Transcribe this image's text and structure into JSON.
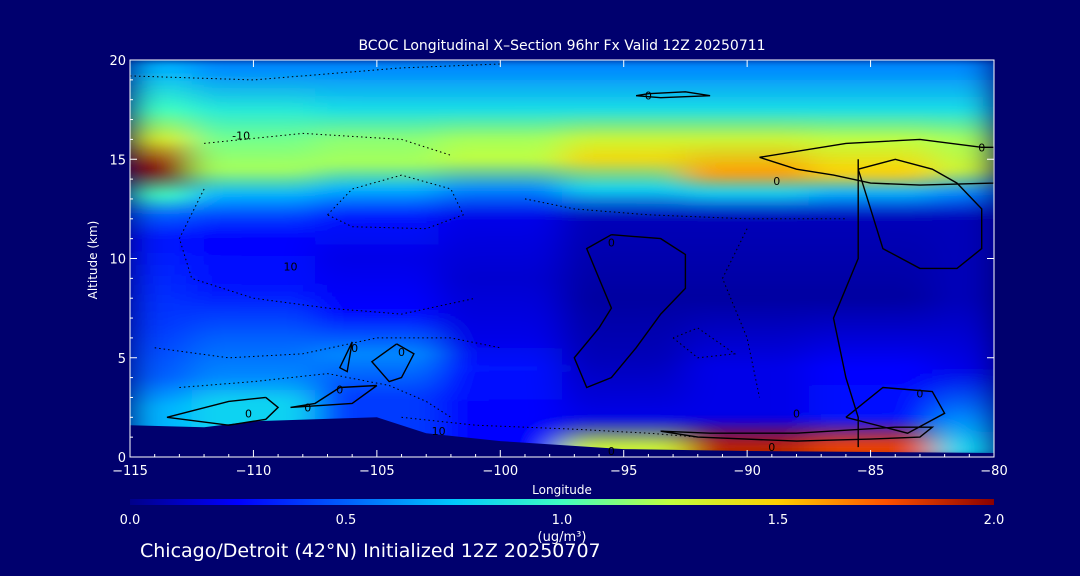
{
  "chart_data": {
    "type": "heatmap",
    "title": "BCOC Longitudinal X–Section 96hr  Fx Valid 12Z 20250711",
    "xlabel": "Longitude",
    "ylabel": "Altitude (km)",
    "xlim": [
      -115,
      -80
    ],
    "ylim": [
      0,
      20
    ],
    "x_ticks": [
      -115,
      -110,
      -105,
      -100,
      -95,
      -90,
      -85,
      -80
    ],
    "y_ticks": [
      0,
      5,
      10,
      15,
      20
    ],
    "colorbar": {
      "min": 0.0,
      "max": 2.0,
      "ticks": [
        0.0,
        0.5,
        1.0,
        1.5,
        2.0
      ],
      "tick_labels": [
        "0.0",
        "0.5",
        "1.0",
        "1.5",
        "2.0"
      ],
      "unit_label": "(ug/m³)"
    },
    "field_profiles": [
      {
        "lon": -115,
        "bands": [
          [
            19.5,
            0.7
          ],
          [
            17.5,
            1.0
          ],
          [
            16.0,
            1.35
          ],
          [
            14.5,
            2.0
          ],
          [
            13.2,
            1.0
          ],
          [
            12.2,
            0.5
          ],
          [
            11.0,
            0.3
          ],
          [
            9.0,
            0.35
          ],
          [
            6.5,
            0.4
          ],
          [
            4.0,
            0.5
          ],
          [
            2.5,
            0.7
          ]
        ]
      },
      {
        "lon": -110,
        "bands": [
          [
            19.5,
            0.6
          ],
          [
            17.5,
            0.9
          ],
          [
            16.0,
            1.1
          ],
          [
            14.5,
            1.2
          ],
          [
            13.2,
            0.7
          ],
          [
            12.0,
            0.4
          ],
          [
            11.0,
            0.25
          ],
          [
            8.5,
            0.3
          ],
          [
            6.0,
            0.5
          ],
          [
            4.0,
            0.6
          ],
          [
            2.8,
            0.8
          ]
        ]
      },
      {
        "lon": -105,
        "bands": [
          [
            19.5,
            0.6
          ],
          [
            17.5,
            0.85
          ],
          [
            16.0,
            1.15
          ],
          [
            14.8,
            1.2
          ],
          [
            13.5,
            0.7
          ],
          [
            12.0,
            0.3
          ],
          [
            10.0,
            0.2
          ],
          [
            7.5,
            0.25
          ],
          [
            5.2,
            0.6
          ],
          [
            4.0,
            0.5
          ],
          [
            3.0,
            0.4
          ]
        ]
      },
      {
        "lon": -100,
        "bands": [
          [
            19.5,
            0.6
          ],
          [
            17.5,
            0.85
          ],
          [
            16.0,
            1.2
          ],
          [
            15.0,
            1.25
          ],
          [
            13.5,
            0.6
          ],
          [
            12.0,
            0.2
          ],
          [
            9.0,
            0.15
          ],
          [
            6.0,
            0.2
          ],
          [
            4.5,
            0.3
          ],
          [
            2.0,
            0.25
          ]
        ]
      },
      {
        "lon": -95,
        "bands": [
          [
            19.5,
            0.6
          ],
          [
            17.5,
            0.85
          ],
          [
            16.0,
            1.3
          ],
          [
            15.0,
            1.45
          ],
          [
            13.5,
            0.8
          ],
          [
            12.0,
            0.1
          ],
          [
            8.0,
            0.05
          ],
          [
            5.0,
            0.1
          ],
          [
            2.0,
            0.2
          ],
          [
            0.5,
            1.3
          ]
        ]
      },
      {
        "lon": -90,
        "bands": [
          [
            19.5,
            0.6
          ],
          [
            17.5,
            0.85
          ],
          [
            16.0,
            1.3
          ],
          [
            14.3,
            1.6
          ],
          [
            13.3,
            0.8
          ],
          [
            12.0,
            0.1
          ],
          [
            8.0,
            0.05
          ],
          [
            4.5,
            0.2
          ],
          [
            2.0,
            0.2
          ],
          [
            0.6,
            1.9
          ]
        ]
      },
      {
        "lon": -85,
        "bands": [
          [
            19.5,
            0.6
          ],
          [
            17.5,
            0.85
          ],
          [
            16.0,
            1.25
          ],
          [
            14.3,
            1.5
          ],
          [
            13.3,
            0.7
          ],
          [
            12.0,
            0.1
          ],
          [
            8.0,
            0.05
          ],
          [
            4.5,
            0.25
          ],
          [
            2.0,
            0.3
          ],
          [
            0.6,
            1.8
          ]
        ]
      },
      {
        "lon": -80,
        "bands": [
          [
            19.5,
            0.6
          ],
          [
            17.5,
            0.85
          ],
          [
            16.0,
            1.2
          ],
          [
            14.5,
            1.3
          ],
          [
            13.3,
            0.6
          ],
          [
            12.0,
            0.1
          ],
          [
            8.0,
            0.1
          ],
          [
            4.5,
            0.2
          ],
          [
            2.0,
            0.6
          ],
          [
            0.6,
            0.8
          ]
        ]
      }
    ],
    "terrain": [
      [
        -115,
        1.6
      ],
      [
        -112,
        1.5
      ],
      [
        -110,
        1.8
      ],
      [
        -105,
        2.0
      ],
      [
        -103,
        1.2
      ],
      [
        -100,
        0.8
      ],
      [
        -95,
        0.4
      ],
      [
        -90,
        0.3
      ],
      [
        -80,
        0.2
      ]
    ],
    "contour_label": "0",
    "contour_label_neg": "-10",
    "contours_solid": [
      [
        [
          -89.5,
          15.1
        ],
        [
          -86,
          15.8
        ],
        [
          -83,
          16.0
        ],
        [
          -80.5,
          15.6
        ],
        [
          -80,
          15.6
        ],
        [
          -80,
          13.8
        ],
        [
          -83,
          13.7
        ],
        [
          -85,
          13.8
        ],
        [
          -86.5,
          14.2
        ],
        [
          -88,
          14.5
        ],
        [
          -89.5,
          15.1
        ]
      ],
      [
        [
          -95.5,
          11.2
        ],
        [
          -93.5,
          11.0
        ],
        [
          -92.5,
          10.2
        ],
        [
          -92.5,
          8.5
        ],
        [
          -93.5,
          7.2
        ],
        [
          -94.5,
          5.5
        ],
        [
          -95.5,
          4.0
        ],
        [
          -96.5,
          3.5
        ],
        [
          -97.0,
          5.0
        ],
        [
          -96.0,
          6.5
        ],
        [
          -95.5,
          7.5
        ],
        [
          -96.0,
          9.0
        ],
        [
          -96.5,
          10.5
        ],
        [
          -95.5,
          11.2
        ]
      ],
      [
        [
          -104.2,
          5.7
        ],
        [
          -103.5,
          5.2
        ],
        [
          -104.0,
          4.0
        ],
        [
          -104.5,
          3.8
        ],
        [
          -105.2,
          4.8
        ],
        [
          -104.2,
          5.7
        ]
      ],
      [
        [
          -106.0,
          5.8
        ],
        [
          -106.5,
          4.5
        ],
        [
          -106.2,
          4.3
        ],
        [
          -106.0,
          5.8
        ]
      ],
      [
        [
          -109.5,
          3.0
        ],
        [
          -111.0,
          2.8
        ],
        [
          -113.5,
          2.0
        ],
        [
          -111.0,
          1.6
        ],
        [
          -109.5,
          1.9
        ],
        [
          -109.0,
          2.5
        ],
        [
          -109.5,
          3.0
        ]
      ],
      [
        [
          -105.0,
          3.6
        ],
        [
          -106.5,
          3.5
        ],
        [
          -107.5,
          2.7
        ],
        [
          -108.5,
          2.5
        ],
        [
          -106.0,
          2.7
        ],
        [
          -105.0,
          3.6
        ]
      ],
      [
        [
          -85.5,
          14.5
        ],
        [
          -84.0,
          15.0
        ],
        [
          -82.5,
          14.5
        ],
        [
          -81.5,
          13.8
        ],
        [
          -80.5,
          12.5
        ],
        [
          -80.5,
          10.5
        ],
        [
          -81.5,
          9.5
        ],
        [
          -83.0,
          9.5
        ],
        [
          -84.5,
          10.5
        ],
        [
          -85.0,
          12.5
        ],
        [
          -85.5,
          14.5
        ]
      ],
      [
        [
          -85.5,
          15.0
        ],
        [
          -85.5,
          10.0
        ],
        [
          -86.5,
          7.0
        ],
        [
          -86.0,
          4.0
        ],
        [
          -85.5,
          2.0
        ],
        [
          -85.5,
          0.5
        ]
      ],
      [
        [
          -86.0,
          2.0
        ],
        [
          -84.5,
          3.5
        ],
        [
          -82.5,
          3.3
        ],
        [
          -82.0,
          2.2
        ],
        [
          -83.5,
          1.2
        ],
        [
          -86.0,
          2.0
        ]
      ],
      [
        [
          -93.5,
          1.3
        ],
        [
          -91.5,
          1.2
        ],
        [
          -88.0,
          1.2
        ],
        [
          -84.0,
          1.5
        ],
        [
          -82.5,
          1.5
        ],
        [
          -83.0,
          1.0
        ],
        [
          -85.0,
          0.9
        ],
        [
          -88.0,
          0.8
        ],
        [
          -92.0,
          1.0
        ],
        [
          -93.5,
          1.3
        ]
      ],
      [
        [
          -94.0,
          18.3
        ],
        [
          -92.5,
          18.4
        ],
        [
          -91.5,
          18.2
        ],
        [
          -93.5,
          18.1
        ],
        [
          -94.5,
          18.2
        ],
        [
          -94.0,
          18.3
        ]
      ]
    ],
    "contours_dotted": [
      [
        [
          -115,
          19.2
        ],
        [
          -110,
          19.0
        ],
        [
          -104,
          19.6
        ],
        [
          -100,
          19.8
        ]
      ],
      [
        [
          -112,
          15.8
        ],
        [
          -108,
          16.3
        ],
        [
          -104,
          16.0
        ],
        [
          -102,
          15.2
        ]
      ],
      [
        [
          -107,
          12.2
        ],
        [
          -106,
          13.5
        ],
        [
          -104,
          14.2
        ],
        [
          -102,
          13.5
        ],
        [
          -101.5,
          12.2
        ],
        [
          -103,
          11.5
        ],
        [
          -106,
          11.6
        ],
        [
          -107,
          12.2
        ]
      ],
      [
        [
          -112,
          13.5
        ],
        [
          -113,
          11.0
        ],
        [
          -112.5,
          9.0
        ],
        [
          -110,
          8.0
        ],
        [
          -107,
          7.5
        ],
        [
          -104,
          7.2
        ],
        [
          -101,
          8.0
        ]
      ],
      [
        [
          -114,
          5.5
        ],
        [
          -111,
          5.0
        ],
        [
          -108,
          5.2
        ],
        [
          -105,
          6.0
        ],
        [
          -102,
          6.0
        ],
        [
          -100,
          5.5
        ]
      ],
      [
        [
          -113,
          3.5
        ],
        [
          -110,
          3.8
        ],
        [
          -107,
          4.2
        ],
        [
          -104.5,
          3.6
        ],
        [
          -103,
          2.8
        ],
        [
          -102,
          2.0
        ]
      ],
      [
        [
          -104,
          2.0
        ],
        [
          -101,
          1.6
        ],
        [
          -97,
          1.4
        ],
        [
          -94,
          1.2
        ],
        [
          -92,
          1.0
        ]
      ],
      [
        [
          -99,
          13.0
        ],
        [
          -97,
          12.5
        ],
        [
          -94,
          12.2
        ],
        [
          -90,
          12.0
        ],
        [
          -86,
          12.0
        ]
      ],
      [
        [
          -90,
          11.5
        ],
        [
          -91,
          9.0
        ],
        [
          -90,
          6.0
        ],
        [
          -89.5,
          3.0
        ]
      ],
      [
        [
          -93,
          6.0
        ],
        [
          -92,
          5.0
        ],
        [
          -90.5,
          5.2
        ],
        [
          -92.0,
          6.5
        ],
        [
          -93,
          6.0
        ]
      ]
    ],
    "contour_labels": [
      {
        "x": -110.5,
        "y": 16.2,
        "text": "-10"
      },
      {
        "x": -110.2,
        "y": 2.2,
        "text": "0"
      },
      {
        "x": -107.8,
        "y": 2.5,
        "text": "0"
      },
      {
        "x": -106.5,
        "y": 3.4,
        "text": "0"
      },
      {
        "x": -105.9,
        "y": 5.5,
        "text": "0"
      },
      {
        "x": -104.0,
        "y": 5.3,
        "text": "0"
      },
      {
        "x": -108.5,
        "y": 9.6,
        "text": "10"
      },
      {
        "x": -102.5,
        "y": 1.3,
        "text": "10"
      },
      {
        "x": -94.0,
        "y": 18.2,
        "text": "0"
      },
      {
        "x": -80.5,
        "y": 15.6,
        "text": "0"
      },
      {
        "x": -88.8,
        "y": 13.9,
        "text": "0"
      },
      {
        "x": -88.0,
        "y": 2.2,
        "text": "0"
      },
      {
        "x": -83.0,
        "y": 3.2,
        "text": "0"
      },
      {
        "x": -89.0,
        "y": 0.5,
        "text": "0"
      },
      {
        "x": -95.5,
        "y": 0.3,
        "text": "0"
      },
      {
        "x": -95.5,
        "y": 10.8,
        "text": "0"
      }
    ]
  },
  "footer": "Chicago/Detroit (42°N) Initialized 12Z 20250707"
}
